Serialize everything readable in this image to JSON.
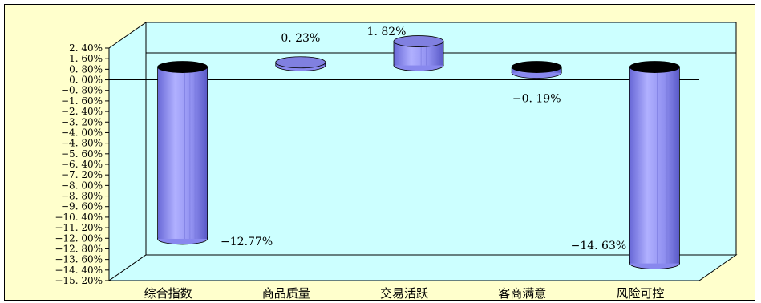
{
  "chart_data": {
    "type": "bar",
    "categories": [
      "综合指数",
      "商品质量",
      "交易活跃",
      "客商满意",
      "风险可控"
    ],
    "values": [
      -12.77,
      0.23,
      1.82,
      -0.19,
      -14.63
    ],
    "data_labels": [
      "−12.77%",
      "0. 23%",
      "1. 82%",
      "−0. 19%",
      "−14. 63%"
    ],
    "ylim": [
      -15.2,
      2.4
    ],
    "yticks": [
      {
        "value": 2.4,
        "label": "2. 40%"
      },
      {
        "value": 1.6,
        "label": "1. 60%"
      },
      {
        "value": 0.8,
        "label": "0. 80%"
      },
      {
        "value": 0.0,
        "label": "0. 00%"
      },
      {
        "value": -0.8,
        "label": "−0. 80%"
      },
      {
        "value": -1.6,
        "label": "−1. 60%"
      },
      {
        "value": -2.4,
        "label": "−2. 40%"
      },
      {
        "value": -3.2,
        "label": "−3. 20%"
      },
      {
        "value": -4.0,
        "label": "−4. 00%"
      },
      {
        "value": -4.8,
        "label": "−4. 80%"
      },
      {
        "value": -5.6,
        "label": "−5. 60%"
      },
      {
        "value": -6.4,
        "label": "−6. 40%"
      },
      {
        "value": -7.2,
        "label": "−7. 20%"
      },
      {
        "value": -8.0,
        "label": "−8. 00%"
      },
      {
        "value": -8.8,
        "label": "−8. 80%"
      },
      {
        "value": -9.6,
        "label": "−9. 60%"
      },
      {
        "value": -10.4,
        "label": "−10. 40%"
      },
      {
        "value": -11.2,
        "label": "−11. 20%"
      },
      {
        "value": -12.0,
        "label": "−12. 00%"
      },
      {
        "value": -12.8,
        "label": "−12. 80%"
      },
      {
        "value": -13.6,
        "label": "−13. 60%"
      },
      {
        "value": -14.4,
        "label": "−14. 40%"
      },
      {
        "value": -15.2,
        "label": "−15. 20%"
      }
    ],
    "grid": false,
    "legend": "none",
    "colors": {
      "frame_background": "#ffffcc",
      "plot_wall": "#ccffff",
      "bar_light": "#aaaaff",
      "bar_mid": "#8888ee",
      "bar_dark": "#5555cc",
      "bar_top_negative": "#000000",
      "bar_top_positive": "#8080e0"
    }
  }
}
